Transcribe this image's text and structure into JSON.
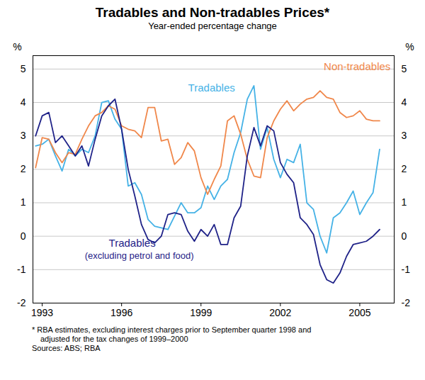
{
  "chart_data": {
    "type": "line",
    "title": "Tradables and Non-tradables Prices*",
    "subtitle": "Year-ended percentage change",
    "ylabel": "%",
    "footnote": "* RBA estimates, excluding interest charges prior to September quarter 1998 and adjusted for the tax changes of 1999–2000",
    "source": "Sources: ABS; RBA",
    "x": [
      1992.75,
      1993,
      1993.25,
      1993.5,
      1993.75,
      1994,
      1994.25,
      1994.5,
      1994.75,
      1995,
      1995.25,
      1995.5,
      1995.75,
      1996,
      1996.25,
      1996.5,
      1996.75,
      1997,
      1997.25,
      1997.5,
      1997.75,
      1998,
      1998.25,
      1998.5,
      1998.75,
      1999,
      1999.25,
      1999.5,
      1999.75,
      2000,
      2000.25,
      2000.5,
      2000.75,
      2001,
      2001.25,
      2001.5,
      2001.75,
      2002,
      2002.25,
      2002.5,
      2002.75,
      2003,
      2003.25,
      2003.5,
      2003.75,
      2004,
      2004.25,
      2004.5,
      2004.75,
      2005,
      2005.25,
      2005.5,
      2005.75
    ],
    "series": [
      {
        "name": "Tradables",
        "color": "#45b2e6",
        "values": [
          2.7,
          2.75,
          2.9,
          2.4,
          1.95,
          2.6,
          2.4,
          2.6,
          2.5,
          3.0,
          4.0,
          4.05,
          3.5,
          3.2,
          1.5,
          1.6,
          1.25,
          0.5,
          0.3,
          0.25,
          0.2,
          0.6,
          1.0,
          0.7,
          0.7,
          0.85,
          1.5,
          1.1,
          1.5,
          1.7,
          2.5,
          3.1,
          4.1,
          4.5,
          2.6,
          3.25,
          2.3,
          1.75,
          2.3,
          2.2,
          2.75,
          1.0,
          0.8,
          0.0,
          -0.5,
          0.55,
          0.7,
          1.0,
          1.35,
          0.65,
          1.0,
          1.3,
          2.6
        ]
      },
      {
        "name": "Non-tradables",
        "color": "#f0874a",
        "values": [
          2.05,
          2.95,
          2.9,
          2.5,
          2.2,
          2.5,
          2.45,
          2.9,
          3.3,
          3.6,
          3.7,
          3.9,
          3.8,
          3.3,
          3.2,
          3.15,
          2.95,
          3.85,
          3.85,
          2.85,
          2.9,
          2.15,
          2.35,
          2.8,
          2.55,
          1.75,
          1.25,
          1.7,
          2.1,
          3.45,
          3.6,
          3.05,
          2.3,
          1.8,
          1.75,
          2.95,
          3.45,
          3.8,
          4.05,
          3.75,
          3.95,
          4.1,
          4.15,
          4.35,
          4.15,
          4.1,
          3.7,
          3.55,
          3.6,
          3.75,
          3.5,
          3.45,
          3.45
        ]
      },
      {
        "name": "Tradables\n(excluding petrol and food)",
        "color": "#1f2288",
        "values": [
          3.0,
          3.6,
          3.7,
          2.8,
          3.0,
          2.7,
          2.4,
          2.7,
          2.1,
          2.9,
          3.6,
          3.9,
          4.1,
          3.2,
          2.0,
          1.2,
          0.35,
          -0.1,
          -0.2,
          0.0,
          0.65,
          0.7,
          0.65,
          0.15,
          -0.15,
          0.2,
          0.0,
          0.35,
          -0.25,
          -0.25,
          0.55,
          0.9,
          2.4,
          3.25,
          2.7,
          3.3,
          3.15,
          2.2,
          1.85,
          1.6,
          0.55,
          0.35,
          0.05,
          -0.85,
          -1.3,
          -1.4,
          -1.1,
          -0.6,
          -0.25,
          -0.2,
          -0.15,
          0.0,
          0.2
        ]
      }
    ],
    "xlim": [
      1992.65,
      2006.3
    ],
    "xticks": [
      1993,
      1996,
      1999,
      2002,
      2005
    ],
    "ylim": [
      -2,
      5.4
    ],
    "yticks": [
      -2,
      -1,
      0,
      1,
      2,
      3,
      4,
      5
    ],
    "grid": true
  }
}
